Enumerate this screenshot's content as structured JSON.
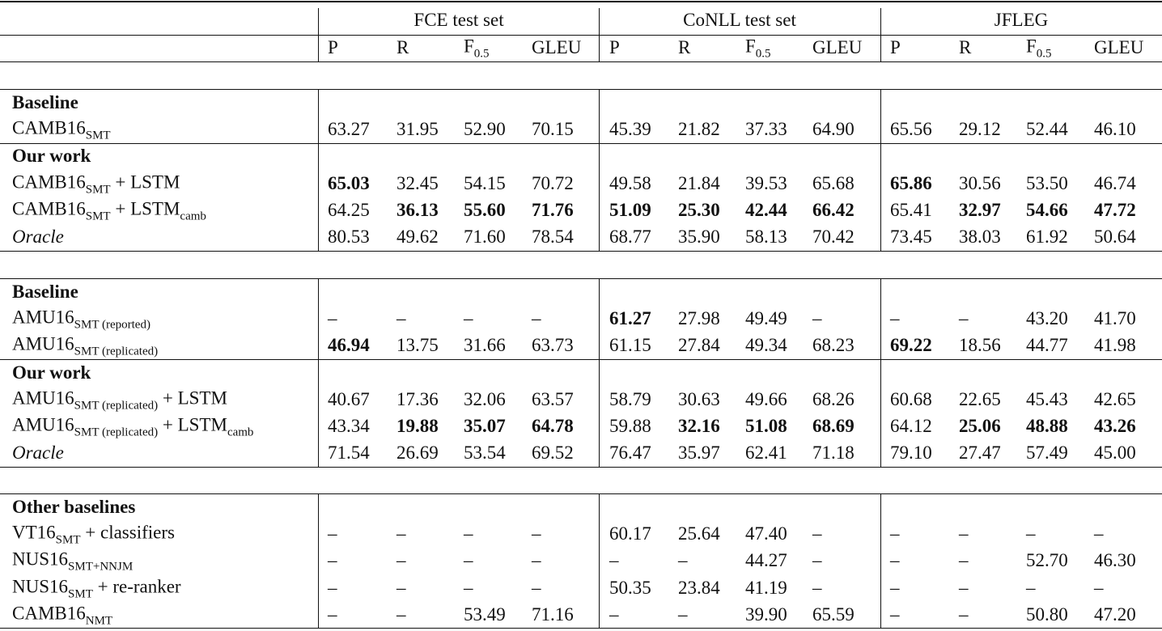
{
  "header": {
    "groups": [
      "FCE test set",
      "CoNLL test set",
      "JFLEG"
    ],
    "metrics": [
      {
        "t": "P"
      },
      {
        "t": "R"
      },
      {
        "t": "F",
        "sub": "0.5"
      },
      {
        "t": "GLEU"
      }
    ]
  },
  "blocks": [
    {
      "sections": [
        {
          "heading": "Baseline",
          "rows": [
            {
              "label": [
                {
                  "t": "CAMB16"
                },
                {
                  "sub": "SMT"
                }
              ],
              "cells": [
                "63.27",
                "31.95",
                "52.90",
                "70.15",
                "45.39",
                "21.82",
                "37.33",
                "64.90",
                "65.56",
                "29.12",
                "52.44",
                "46.10"
              ],
              "bold": []
            }
          ]
        },
        {
          "heading": "Our work",
          "rows": [
            {
              "label": [
                {
                  "t": "CAMB16"
                },
                {
                  "sub": "SMT"
                },
                {
                  "t": " + LSTM"
                }
              ],
              "cells": [
                "65.03",
                "32.45",
                "54.15",
                "70.72",
                "49.58",
                "21.84",
                "39.53",
                "65.68",
                "65.86",
                "30.56",
                "53.50",
                "46.74"
              ],
              "bold": [
                0,
                8
              ]
            },
            {
              "label": [
                {
                  "t": "CAMB16"
                },
                {
                  "sub": "SMT"
                },
                {
                  "t": " + LSTM"
                },
                {
                  "sub": "camb"
                }
              ],
              "cells": [
                "64.25",
                "36.13",
                "55.60",
                "71.76",
                "51.09",
                "25.30",
                "42.44",
                "66.42",
                "65.41",
                "32.97",
                "54.66",
                "47.72"
              ],
              "bold": [
                1,
                2,
                3,
                4,
                5,
                6,
                7,
                9,
                10,
                11
              ]
            },
            {
              "label": [
                {
                  "t": "Oracle"
                }
              ],
              "italic": true,
              "cells": [
                "80.53",
                "49.62",
                "71.60",
                "78.54",
                "68.77",
                "35.90",
                "58.13",
                "70.42",
                "73.45",
                "38.03",
                "61.92",
                "50.64"
              ],
              "bold": []
            }
          ]
        }
      ]
    },
    {
      "sections": [
        {
          "heading": "Baseline",
          "rows": [
            {
              "label": [
                {
                  "t": "AMU16"
                },
                {
                  "sub": "SMT (reported)"
                }
              ],
              "cells": [
                "–",
                "–",
                "–",
                "–",
                "61.27",
                "27.98",
                "49.49",
                "–",
                "–",
                "–",
                "43.20",
                "41.70"
              ],
              "bold": [
                4
              ]
            },
            {
              "label": [
                {
                  "t": "AMU16"
                },
                {
                  "sub": "SMT (replicated)"
                }
              ],
              "cells": [
                "46.94",
                "13.75",
                "31.66",
                "63.73",
                "61.15",
                "27.84",
                "49.34",
                "68.23",
                "69.22",
                "18.56",
                "44.77",
                "41.98"
              ],
              "bold": [
                0,
                8
              ]
            }
          ]
        },
        {
          "heading": "Our work",
          "rows": [
            {
              "label": [
                {
                  "t": "AMU16"
                },
                {
                  "sub": "SMT (replicated)"
                },
                {
                  "t": " + LSTM"
                }
              ],
              "cells": [
                "40.67",
                "17.36",
                "32.06",
                "63.57",
                "58.79",
                "30.63",
                "49.66",
                "68.26",
                "60.68",
                "22.65",
                "45.43",
                "42.65"
              ],
              "bold": []
            },
            {
              "label": [
                {
                  "t": "AMU16"
                },
                {
                  "sub": "SMT (replicated)"
                },
                {
                  "t": " + LSTM"
                },
                {
                  "sub": "camb"
                }
              ],
              "cells": [
                "43.34",
                "19.88",
                "35.07",
                "64.78",
                "59.88",
                "32.16",
                "51.08",
                "68.69",
                "64.12",
                "25.06",
                "48.88",
                "43.26"
              ],
              "bold": [
                1,
                2,
                3,
                5,
                6,
                7,
                9,
                10,
                11
              ]
            },
            {
              "label": [
                {
                  "t": "Oracle"
                }
              ],
              "italic": true,
              "cells": [
                "71.54",
                "26.69",
                "53.54",
                "69.52",
                "76.47",
                "35.97",
                "62.41",
                "71.18",
                "79.10",
                "27.47",
                "57.49",
                "45.00"
              ],
              "bold": []
            }
          ]
        }
      ]
    },
    {
      "sections": [
        {
          "heading": "Other baselines",
          "rows": [
            {
              "label": [
                {
                  "t": "VT16"
                },
                {
                  "sub": "SMT"
                },
                {
                  "t": " + classifiers"
                }
              ],
              "cells": [
                "–",
                "–",
                "–",
                "–",
                "60.17",
                "25.64",
                "47.40",
                "–",
                "–",
                "–",
                "–",
                "–"
              ],
              "bold": []
            },
            {
              "label": [
                {
                  "t": "NUS16"
                },
                {
                  "sub": "SMT+NNJM"
                }
              ],
              "cells": [
                "–",
                "–",
                "–",
                "–",
                "–",
                "–",
                "44.27",
                "–",
                "–",
                "–",
                "52.70",
                "46.30"
              ],
              "bold": []
            },
            {
              "label": [
                {
                  "t": "NUS16"
                },
                {
                  "sub": "SMT"
                },
                {
                  "t": " + re-ranker"
                }
              ],
              "cells": [
                "–",
                "–",
                "–",
                "–",
                "50.35",
                "23.84",
                "41.19",
                "–",
                "–",
                "–",
                "–",
                "–"
              ],
              "bold": []
            },
            {
              "label": [
                {
                  "t": "CAMB16"
                },
                {
                  "sub": "NMT"
                }
              ],
              "cells": [
                "–",
                "–",
                "53.49",
                "71.16",
                "–",
                "–",
                "39.90",
                "65.59",
                "–",
                "–",
                "50.80",
                "47.20"
              ],
              "bold": []
            }
          ]
        }
      ]
    }
  ]
}
